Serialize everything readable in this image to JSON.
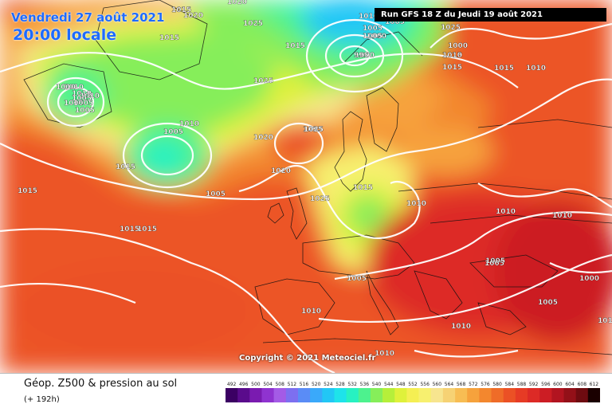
{
  "header": {
    "date": "Vendredi 27 août 2021",
    "time": "20:00 locale",
    "run": "Run GFS 18 Z du Jeudi 19 août 2021"
  },
  "copyright": "Copyright © 2021 Meteociel.fr",
  "footer": {
    "title": "Géop. Z500 & pression au sol",
    "subtitle": "(+ 192h)"
  },
  "legend": {
    "values": [
      "492",
      "496",
      "500",
      "504",
      "508",
      "512",
      "516",
      "520",
      "524",
      "528",
      "532",
      "536",
      "540",
      "544",
      "548",
      "552",
      "556",
      "560",
      "564",
      "568",
      "572",
      "576",
      "580",
      "584",
      "588",
      "592",
      "596",
      "600",
      "604",
      "608",
      "612"
    ],
    "colors": [
      "#3b0063",
      "#5a0b8c",
      "#7a1bb0",
      "#8f33d0",
      "#a45be6",
      "#7d6ff0",
      "#5a8cf6",
      "#3aa9fa",
      "#22c7f5",
      "#1ee3ea",
      "#27f1c2",
      "#4df28e",
      "#86ee5a",
      "#b6ef3a",
      "#dff13b",
      "#f5ef53",
      "#f7f06f",
      "#f7e58f",
      "#f6d274",
      "#f7bd53",
      "#f6a23c",
      "#f3872e",
      "#ef6c28",
      "#eb5125",
      "#e63b25",
      "#dd2a26",
      "#cc1d24",
      "#b21420",
      "#931018",
      "#6e0b10",
      "#1a0000"
    ]
  },
  "pressure_labels": [
    {
      "text": "1015"
    },
    {
      "text": "1020"
    },
    {
      "text": "1020"
    },
    {
      "text": "1025"
    },
    {
      "text": "1010"
    },
    {
      "text": "1000"
    },
    {
      "text": "1005"
    },
    {
      "text": "1000"
    },
    {
      "text": "1015"
    },
    {
      "text": "1025"
    },
    {
      "text": "1010"
    },
    {
      "text": "1005"
    },
    {
      "text": "1000"
    },
    {
      "text": "1015"
    },
    {
      "text": "1015"
    },
    {
      "text": "1015"
    },
    {
      "text": "1015"
    },
    {
      "text": "1015"
    },
    {
      "text": "1015"
    },
    {
      "text": "1015"
    },
    {
      "text": "1025"
    },
    {
      "text": "1015"
    },
    {
      "text": "1025"
    },
    {
      "text": "1020"
    },
    {
      "text": "1020"
    },
    {
      "text": "1025"
    },
    {
      "text": "1005"
    },
    {
      "text": "1025"
    },
    {
      "text": "1015"
    },
    {
      "text": "1010"
    },
    {
      "text": "1005"
    },
    {
      "text": "1010"
    },
    {
      "text": "1010"
    },
    {
      "text": "1005"
    },
    {
      "text": "1010"
    },
    {
      "text": "1010"
    },
    {
      "text": "1005"
    },
    {
      "text": "1010"
    },
    {
      "text": "995"
    },
    {
      "text": "1005"
    },
    {
      "text": "1005"
    },
    {
      "text": "1010"
    },
    {
      "text": "1010"
    },
    {
      "text": "1010"
    },
    {
      "text": "1010"
    },
    {
      "text": "1010"
    },
    {
      "text": "1005"
    },
    {
      "text": "1005"
    },
    {
      "text": "1000"
    },
    {
      "text": "1010"
    },
    {
      "text": "1005"
    },
    {
      "text": "1010"
    },
    {
      "text": "1005"
    },
    {
      "text": "1015"
    },
    {
      "text": "1010"
    },
    {
      "text": "1005"
    }
  ]
}
